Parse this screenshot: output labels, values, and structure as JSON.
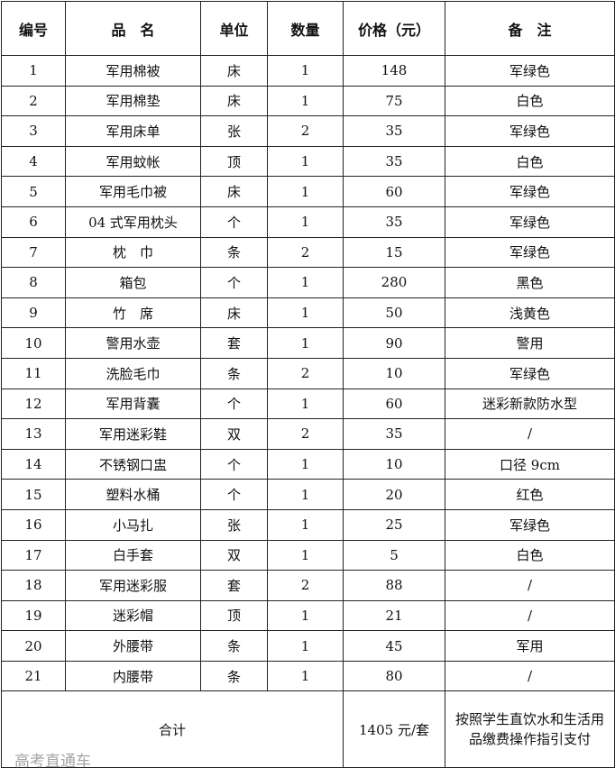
{
  "headers": [
    "编号",
    "品　名",
    "单位",
    "数量",
    "价格（元）",
    "备　注"
  ],
  "rows": [
    [
      "1",
      "军用棉被",
      "床",
      "1",
      "148",
      "军绿色"
    ],
    [
      "2",
      "军用棉垫",
      "床",
      "1",
      "75",
      "白色"
    ],
    [
      "3",
      "军用床单",
      "张",
      "2",
      "35",
      "军绿色"
    ],
    [
      "4",
      "军用蚊帐",
      "顶",
      "1",
      "35",
      "白色"
    ],
    [
      "5",
      "军用毛巾被",
      "床",
      "1",
      "60",
      "军绿色"
    ],
    [
      "6",
      "04 式军用枕头",
      "个",
      "1",
      "35",
      "军绿色"
    ],
    [
      "7",
      "枕　巾",
      "条",
      "2",
      "15",
      "军绿色"
    ],
    [
      "8",
      "箱包",
      "个",
      "1",
      "280",
      "黑色"
    ],
    [
      "9",
      "竹　席",
      "床",
      "1",
      "50",
      "浅黄色"
    ],
    [
      "10",
      "警用水壶",
      "套",
      "1",
      "90",
      "警用"
    ],
    [
      "11",
      "洗脸毛巾",
      "条",
      "2",
      "10",
      "军绿色"
    ],
    [
      "12",
      "军用背囊",
      "个",
      "1",
      "60",
      "迷彩新款防水型"
    ],
    [
      "13",
      "军用迷彩鞋",
      "双",
      "2",
      "35",
      "/"
    ],
    [
      "14",
      "不锈钢口盅",
      "个",
      "1",
      "10",
      "口径 9cm"
    ],
    [
      "15",
      "塑料水桶",
      "个",
      "1",
      "20",
      "红色"
    ],
    [
      "16",
      "小马扎",
      "张",
      "1",
      "25",
      "军绿色"
    ],
    [
      "17",
      "白手套",
      "双",
      "1",
      "5",
      "白色"
    ],
    [
      "18",
      "军用迷彩服",
      "套",
      "2",
      "88",
      "/"
    ],
    [
      "19",
      "迷彩帽",
      "顶",
      "1",
      "21",
      "/"
    ],
    [
      "20",
      "外腰带",
      "条",
      "1",
      "45",
      "军用"
    ],
    [
      "21",
      "内腰带",
      "条",
      "1",
      "80",
      "/"
    ]
  ],
  "total": {
    "label": "合计",
    "price": "1405 元/套",
    "note": "按照学生直饮水和生活用品缴费操作指引支付"
  },
  "watermark": "高考直通车"
}
